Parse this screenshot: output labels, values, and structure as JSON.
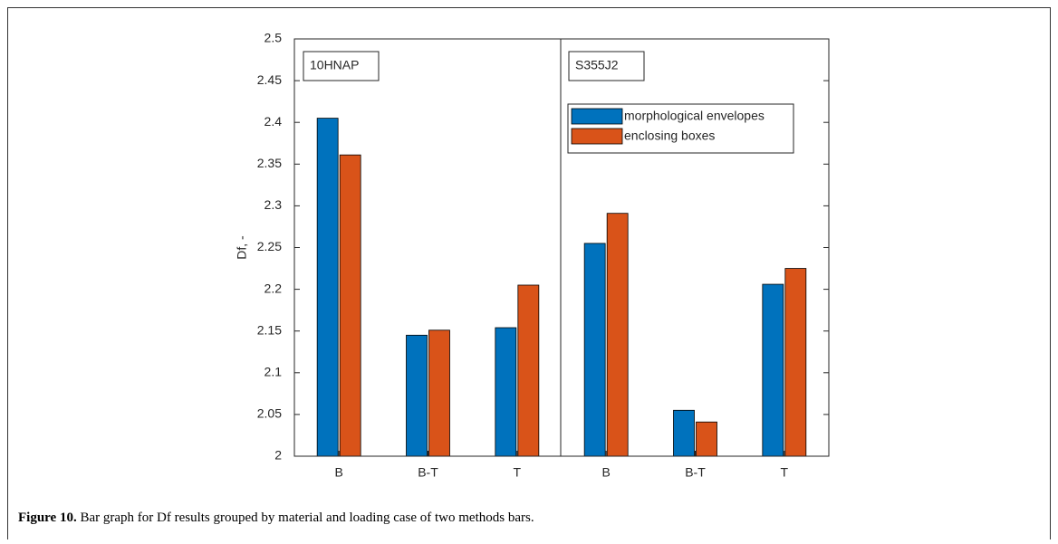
{
  "chart_data": {
    "type": "bar",
    "ylabel": "Df, -",
    "categories": [
      "B",
      "B-T",
      "T",
      "B",
      "B-T",
      "T"
    ],
    "annotations": [
      "10HNAP",
      "S355J2"
    ],
    "series": [
      {
        "name": "morphological envelopes",
        "color": "#0072BD",
        "values": [
          2.405,
          2.145,
          2.154,
          2.255,
          2.055,
          2.206
        ]
      },
      {
        "name": "enclosing boxes",
        "color": "#D95319",
        "values": [
          2.361,
          2.151,
          2.205,
          2.291,
          2.041,
          2.225
        ]
      }
    ],
    "ylim": [
      2,
      2.5
    ],
    "yticks": [
      2,
      2.05,
      2.1,
      2.15,
      2.2,
      2.25,
      2.3,
      2.35,
      2.4,
      2.45,
      2.5
    ],
    "legend": "upper right"
  },
  "caption": {
    "label": "Figure 10.",
    "text": " Bar graph for Df results grouped by material and loading case of two methods bars."
  }
}
